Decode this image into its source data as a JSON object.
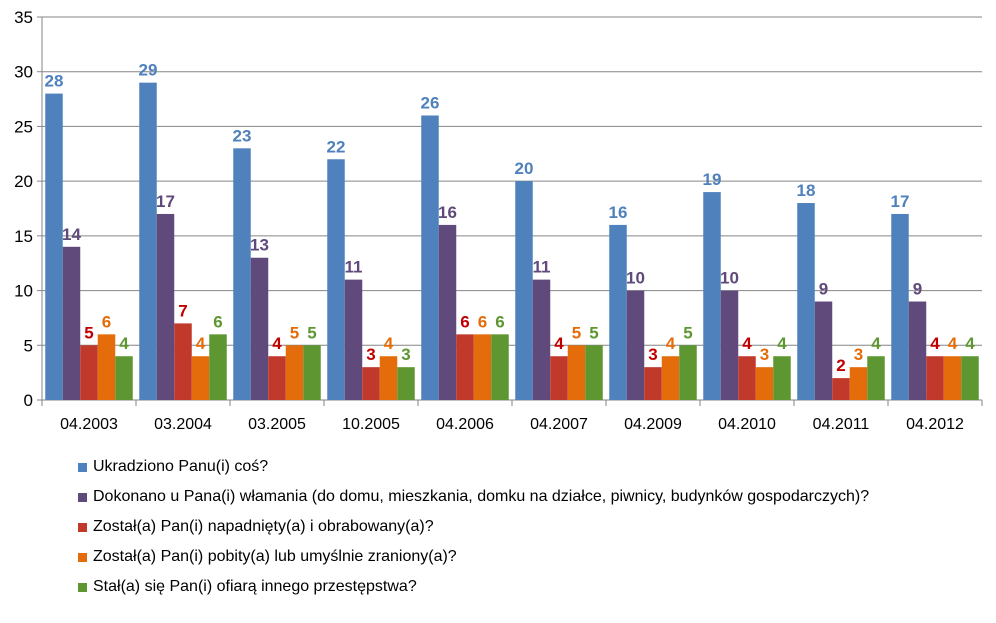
{
  "chart_data": {
    "type": "bar",
    "categories": [
      "04.2003",
      "03.2004",
      "03.2005",
      "10.2005",
      "04.2006",
      "04.2007",
      "04.2009",
      "04.2010",
      "04.2011",
      "04.2012"
    ],
    "ylim": [
      0,
      35
    ],
    "yticks": [
      "0",
      "5",
      "10",
      "15",
      "20",
      "25",
      "30",
      "35"
    ],
    "grid": true,
    "legend_position": "bottom",
    "series": [
      {
        "name": "Ukradziono Panu(i) coś?",
        "color": "#4F81BD",
        "label_color": "#4F81BD",
        "values": [
          28,
          29,
          23,
          22,
          26,
          20,
          16,
          19,
          18,
          17
        ]
      },
      {
        "name": "Dokonano u Pana(i) włamania (do domu, mieszkania, domku na działce, piwnicy, budynków gospodarczych)?",
        "color": "#604A7B",
        "label_color": "#604A7B",
        "values": [
          14,
          17,
          13,
          11,
          16,
          11,
          10,
          10,
          9,
          9
        ]
      },
      {
        "name": "Został(a) Pan(i) napadnięty(a) i obrabowany(a)?",
        "color": "#C0392B",
        "label_color": "#C00000",
        "values": [
          5,
          7,
          4,
          3,
          6,
          4,
          3,
          4,
          2,
          4
        ]
      },
      {
        "name": "Został(a) Pan(i) pobity(a) lub umyślnie zraniony(a)?",
        "color": "#E46C0A",
        "label_color": "#E46C0A",
        "values": [
          6,
          4,
          5,
          4,
          6,
          5,
          4,
          3,
          3,
          4
        ]
      },
      {
        "name": "Stał(a) się Pan(i) ofiarą innego przestępstwa?",
        "color": "#5E9732",
        "label_color": "#5E9732",
        "values": [
          4,
          6,
          5,
          3,
          6,
          5,
          5,
          4,
          4,
          4
        ]
      }
    ]
  }
}
